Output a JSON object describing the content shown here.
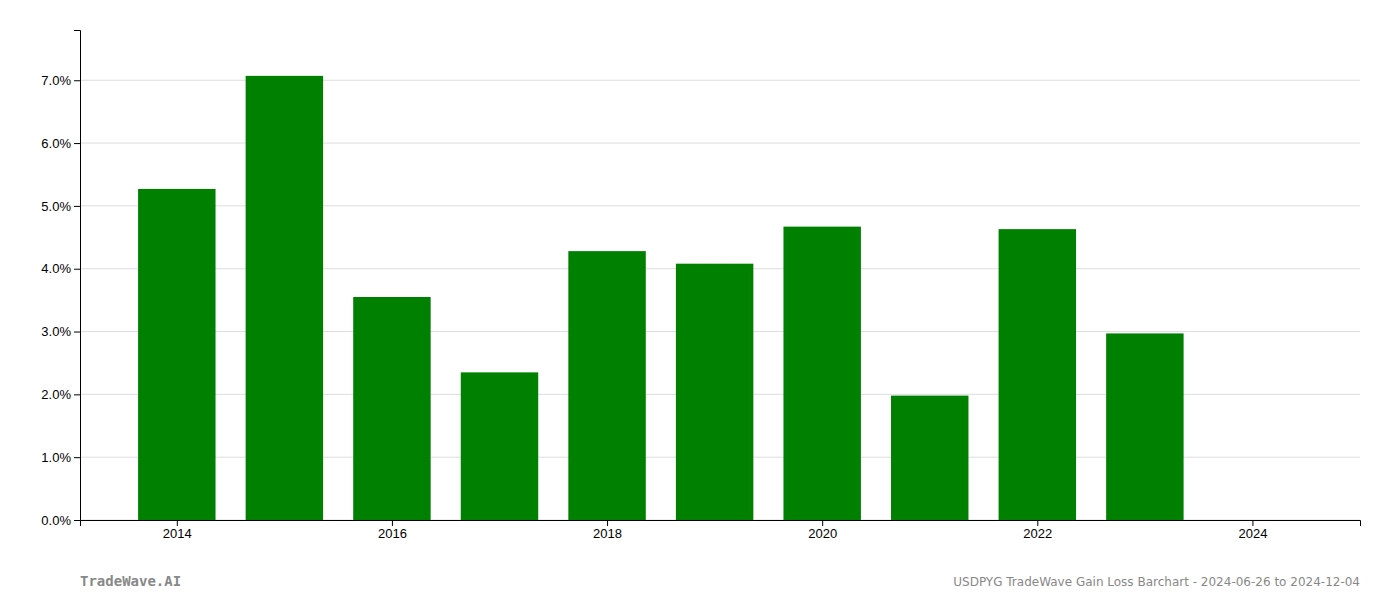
{
  "chart_data": {
    "type": "bar",
    "x": [
      2014,
      2015,
      2016,
      2017,
      2018,
      2019,
      2020,
      2021,
      2022,
      2023,
      2024
    ],
    "values": [
      0.0527,
      0.0707,
      0.0355,
      0.0235,
      0.0428,
      0.0408,
      0.0467,
      0.0198,
      0.0463,
      0.0297,
      0.0
    ],
    "color": "#008000",
    "xlim": [
      2013.1,
      2025.0
    ],
    "xticks": [
      2014,
      2016,
      2018,
      2020,
      2022,
      2024
    ],
    "ylim": [
      0.0,
      0.078
    ],
    "yticks": [
      {
        "value": 0.0,
        "label": "0.0%"
      },
      {
        "value": 0.01,
        "label": "1.0%"
      },
      {
        "value": 0.02,
        "label": "2.0%"
      },
      {
        "value": 0.03,
        "label": "3.0%"
      },
      {
        "value": 0.04,
        "label": "4.0%"
      },
      {
        "value": 0.05,
        "label": "5.0%"
      },
      {
        "value": 0.06,
        "label": "6.0%"
      },
      {
        "value": 0.07,
        "label": "7.0%"
      }
    ],
    "grid": true,
    "annotations": [
      "TradeWave.AI",
      "USDPYG TradeWave Gain Loss Barchart - 2024-06-26 to 2024-12-04"
    ]
  }
}
